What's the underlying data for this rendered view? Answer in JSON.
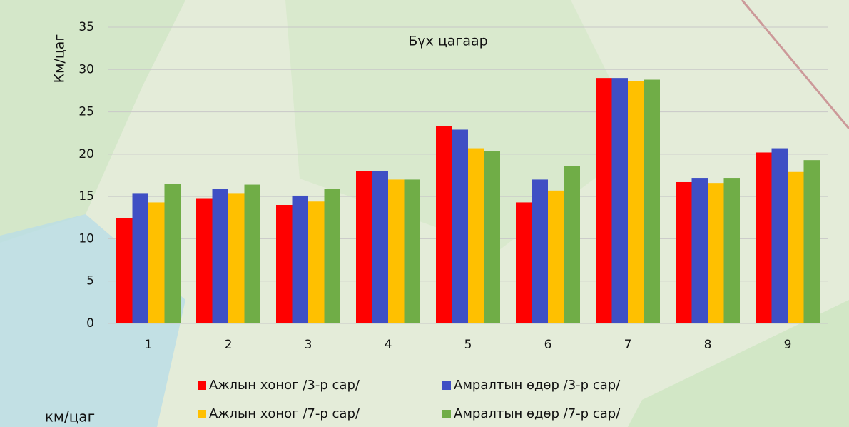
{
  "chart_data": {
    "type": "bar",
    "title": "Бүх цагаар",
    "y_label": "Км/цаг",
    "categories": [
      "1",
      "2",
      "3",
      "4",
      "5",
      "6",
      "7",
      "8",
      "9"
    ],
    "series": [
      {
        "name": "Ажлын хоног /3-р сар/",
        "color": "#ff0000",
        "values": [
          12.4,
          14.8,
          14.0,
          18.0,
          23.3,
          14.3,
          29.0,
          16.7,
          20.2
        ]
      },
      {
        "name": "Амралтын өдөр /3-р сар/",
        "color": "#3f4fc4",
        "values": [
          15.4,
          15.9,
          15.1,
          18.0,
          22.9,
          17.0,
          29.0,
          17.2,
          20.7
        ]
      },
      {
        "name": "Ажлын хоног /7-р сар/",
        "color": "#ffc000",
        "values": [
          14.3,
          15.4,
          14.4,
          17.0,
          20.7,
          15.7,
          28.6,
          16.6,
          17.9
        ]
      },
      {
        "name": "Амралтын өдөр /7-р сар/",
        "color": "#70ad47",
        "values": [
          16.5,
          16.4,
          15.9,
          17.0,
          20.4,
          18.6,
          28.8,
          17.2,
          19.3
        ]
      }
    ],
    "ylim": [
      0,
      35
    ],
    "yticks": [
      0,
      5,
      10,
      15,
      20,
      25,
      30,
      35
    ],
    "grid": true,
    "legend": "bottom"
  },
  "map_label": "км/цаг"
}
